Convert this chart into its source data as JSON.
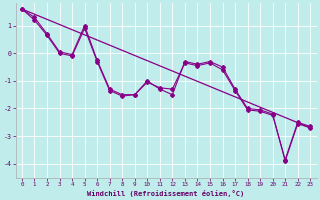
{
  "bg_color": "#c0ecec",
  "line_color": "#880088",
  "grid_color": "#ffffff",
  "xlabel": "Windchill (Refroidissement éolien,°C)",
  "xlabel_color": "#660066",
  "tick_color": "#660066",
  "xlim": [
    -0.5,
    23.5
  ],
  "ylim": [
    -4.5,
    1.8
  ],
  "yticks": [
    -4,
    -3,
    -2,
    -1,
    0,
    1
  ],
  "xticks": [
    0,
    1,
    2,
    3,
    4,
    5,
    6,
    7,
    8,
    9,
    10,
    11,
    12,
    13,
    14,
    15,
    16,
    17,
    18,
    19,
    20,
    21,
    22,
    23
  ],
  "line1_x": [
    0,
    1,
    2,
    3,
    4,
    5,
    6,
    7,
    8,
    9,
    10,
    11,
    12,
    13,
    14,
    15,
    16,
    17,
    18,
    19,
    20,
    21,
    22,
    23
  ],
  "line1_y": [
    1.6,
    1.3,
    0.7,
    0.05,
    -0.05,
    1.0,
    -0.25,
    -1.3,
    -1.5,
    -1.5,
    -1.0,
    -1.3,
    -1.5,
    -0.3,
    -0.4,
    -0.3,
    -0.5,
    -1.3,
    -2.0,
    -2.05,
    -2.2,
    -3.9,
    -2.55,
    -2.7
  ],
  "line2_x": [
    0,
    1,
    2,
    3,
    4,
    5,
    6,
    7,
    8,
    9,
    10,
    11,
    12,
    13,
    14,
    15,
    16,
    17,
    18,
    19,
    20,
    21,
    22,
    23
  ],
  "line2_y": [
    1.6,
    1.2,
    0.65,
    0.0,
    -0.1,
    0.9,
    -0.3,
    -1.35,
    -1.55,
    -1.5,
    -1.05,
    -1.25,
    -1.3,
    -0.35,
    -0.45,
    -0.35,
    -0.6,
    -1.35,
    -2.05,
    -2.1,
    -2.25,
    -3.85,
    -2.5,
    -2.65
  ],
  "line3_x": [
    0,
    23
  ],
  "line3_y": [
    1.6,
    -2.7
  ]
}
